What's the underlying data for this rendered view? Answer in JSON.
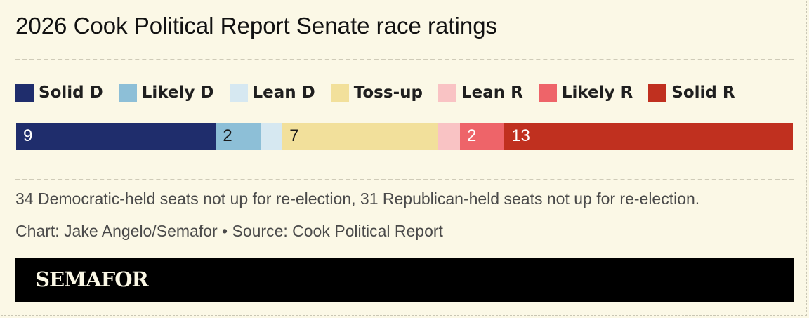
{
  "title": "2026 Cook Political Report Senate race ratings",
  "chart_data": {
    "type": "bar",
    "orientation": "horizontal-stacked",
    "categories": [
      "Solid D",
      "Likely D",
      "Lean D",
      "Toss-up",
      "Lean R",
      "Likely R",
      "Solid R"
    ],
    "values": [
      9,
      2,
      1,
      7,
      1,
      2,
      13
    ],
    "value_labels": [
      "9",
      "2",
      "",
      "7",
      "",
      "2",
      "13"
    ],
    "colors": [
      "#1f2d6c",
      "#8dbfd7",
      "#d6e8f1",
      "#f2e09b",
      "#f9c3c4",
      "#ee6469",
      "#c0301f"
    ],
    "label_colors": [
      "#ffffff",
      "#1a1a1a",
      "#1a1a1a",
      "#1a1a1a",
      "#1a1a1a",
      "#ffffff",
      "#ffffff"
    ],
    "legend_position": "top"
  },
  "note": "34 Democratic-held seats not up for re-election, 31 Republican-held seats not up for re-election.",
  "credit": "Chart: Jake Angelo/Semafor • Source: Cook Political Report",
  "footer": {
    "logo": "SEMAFOR"
  }
}
